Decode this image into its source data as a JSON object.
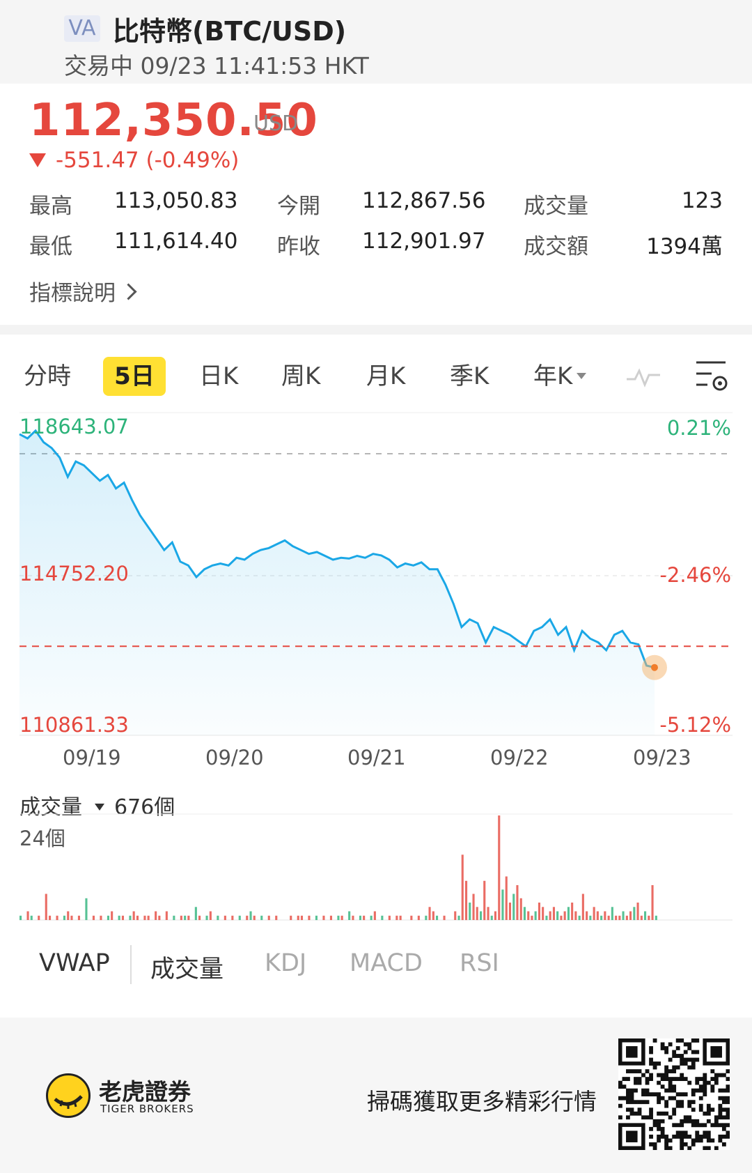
{
  "header": {
    "badge": "VA",
    "title": "比特幣(BTC/USD)",
    "subtitle": "交易中 09/23 11:41:53 HKT"
  },
  "quote": {
    "price": "112,350.50",
    "currency": "USD",
    "change": "-551.47 (-0.49%)"
  },
  "stats": {
    "high_label": "最高",
    "high": "113,050.83",
    "low_label": "最低",
    "low": "111,614.40",
    "open_label": "今開",
    "open": "112,867.56",
    "prev_close_label": "昨收",
    "prev_close": "112,901.97",
    "volume_label": "成交量",
    "volume": "123",
    "turnover_label": "成交額",
    "turnover": "1394萬"
  },
  "info_link": "指標說明",
  "tabs": [
    "分時",
    "5日",
    "日K",
    "周K",
    "月K",
    "季K",
    "年K"
  ],
  "active_tab": "5日",
  "icons": {
    "chart_type": "pulse-line-icon",
    "settings": "chart-settings-icon",
    "logo": "tiger-logo-icon",
    "qr": "qr-code-icon"
  },
  "chart_data": {
    "type": "line",
    "y_labels_left": [
      "118643.07",
      "114752.20",
      "110861.33"
    ],
    "y_labels_right": [
      "0.21%",
      "-2.46%",
      "-5.12%"
    ],
    "ylim": [
      110861.33,
      118643.07
    ],
    "x_labels": [
      "09/19",
      "09/20",
      "09/21",
      "09/22",
      "09/23"
    ],
    "prev_close": 112901.97,
    "last_price": 112350.5,
    "series": [
      {
        "values": [
          118410,
          118300,
          118500,
          118200,
          118050,
          117800,
          117300,
          117700,
          117600,
          117400,
          117200,
          117350,
          117000,
          117150,
          116700,
          116300,
          116000,
          115700,
          115400,
          115600,
          115100,
          115000,
          114700,
          114900,
          115000,
          115050,
          115000,
          115200,
          115150,
          115300,
          115400,
          115450,
          115550,
          115650,
          115500,
          115400,
          115300,
          115350,
          115250,
          115150,
          115200,
          115180,
          115250,
          115200,
          115300,
          115260,
          115150,
          114950,
          115050,
          115000,
          115080,
          114900,
          114900,
          114500,
          114000,
          113400,
          113600,
          113500,
          113000,
          113400,
          113300,
          113200,
          113050,
          112900,
          113300,
          113400,
          113600,
          113200,
          113400,
          112800,
          113300,
          113100,
          113000,
          112800,
          113200,
          113300,
          113000,
          112950,
          112400,
          112350
        ]
      }
    ]
  },
  "volume": {
    "label": "成交量",
    "total": "676個",
    "max_label": "24個",
    "values": [
      1,
      0,
      2,
      1,
      0,
      1,
      0,
      6,
      1,
      0,
      1,
      0,
      1,
      2,
      1,
      0,
      1,
      0,
      5,
      0,
      1,
      0,
      1,
      0,
      1,
      2,
      0,
      1,
      1,
      0,
      1,
      2,
      1,
      0,
      1,
      1,
      0,
      2,
      1,
      0,
      2,
      0,
      1,
      0,
      1,
      1,
      1,
      0,
      3,
      1,
      0,
      1,
      2,
      0,
      1,
      0,
      1,
      0,
      1,
      0,
      1,
      0,
      1,
      2,
      1,
      0,
      1,
      0,
      1,
      0,
      1,
      0,
      0,
      0,
      1,
      0,
      1,
      1,
      0,
      1,
      0,
      1,
      0,
      1,
      0,
      1,
      0,
      1,
      1,
      0,
      2,
      1,
      0,
      1,
      1,
      0,
      1,
      2,
      0,
      1,
      0,
      1,
      0,
      1,
      1,
      0,
      0,
      1,
      0,
      1,
      0,
      1,
      3,
      2,
      1,
      0,
      1,
      0,
      0,
      2,
      1,
      15,
      9,
      4,
      6,
      3,
      2,
      9,
      3,
      1,
      2,
      24,
      7,
      10,
      4,
      6,
      8,
      5,
      3,
      2,
      1,
      2,
      4,
      3,
      1,
      2,
      3,
      2,
      1,
      2,
      3,
      4,
      2,
      1,
      6,
      2,
      1,
      3,
      2,
      1,
      2,
      1,
      3,
      1,
      1,
      2,
      1,
      2,
      3,
      4,
      1,
      2,
      1,
      8,
      1
    ]
  },
  "indicator_tabs": [
    "VWAP",
    "成交量",
    "KDJ",
    "MACD",
    "RSI"
  ],
  "footer": {
    "brand_cn": "老虎證券",
    "brand_en": "TIGER BROKERS",
    "scan_text": "掃碼獲取更多精彩行情"
  },
  "colors": {
    "up_red": "#e5473d",
    "down_green": "#2db37a",
    "line_blue": "#1aa7e6",
    "active_tab": "#ffe033"
  }
}
